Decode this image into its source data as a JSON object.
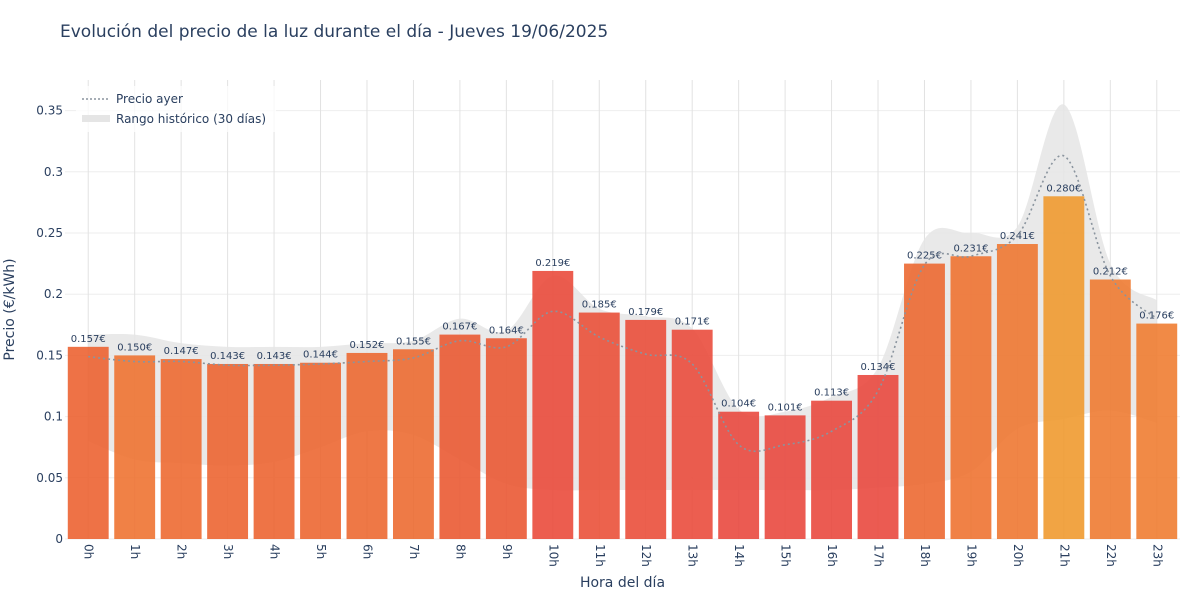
{
  "chart_data": {
    "type": "bar",
    "title": "Evolución del precio de la luz durante el día - Jueves 19/06/2025",
    "xlabel": "Hora del día",
    "ylabel": "Precio (€/kWh)",
    "ylim": [
      0,
      0.375
    ],
    "yticks": [
      0,
      0.05,
      0.1,
      0.15,
      0.2,
      0.25,
      0.3,
      0.35
    ],
    "ytick_labels": [
      "0",
      "0.05",
      "0.1",
      "0.15",
      "0.2",
      "0.25",
      "0.3",
      "0.35"
    ],
    "grid": true,
    "legend_position": "top-left",
    "categories": [
      "0h",
      "1h",
      "2h",
      "3h",
      "4h",
      "5h",
      "6h",
      "7h",
      "8h",
      "9h",
      "10h",
      "11h",
      "12h",
      "13h",
      "14h",
      "15h",
      "16h",
      "17h",
      "18h",
      "19h",
      "20h",
      "21h",
      "22h",
      "23h"
    ],
    "values": [
      0.157,
      0.15,
      0.147,
      0.143,
      0.143,
      0.144,
      0.152,
      0.155,
      0.167,
      0.164,
      0.219,
      0.185,
      0.179,
      0.171,
      0.104,
      0.101,
      0.113,
      0.134,
      0.225,
      0.231,
      0.241,
      0.28,
      0.212,
      0.176
    ],
    "value_labels": [
      "0.157€",
      "0.150€",
      "0.147€",
      "0.143€",
      "0.143€",
      "0.144€",
      "0.152€",
      "0.155€",
      "0.167€",
      "0.164€",
      "0.219€",
      "0.185€",
      "0.179€",
      "0.171€",
      "0.104€",
      "0.101€",
      "0.113€",
      "0.134€",
      "0.225€",
      "0.231€",
      "0.241€",
      "0.280€",
      "0.212€",
      "0.176€"
    ],
    "bar_colors": [
      "#ec5f2c",
      "#ee6f2c",
      "#ed662c",
      "#ec612c",
      "#ec612c",
      "#ec632c",
      "#ec652c",
      "#ec682c",
      "#e9552e",
      "#e9542f",
      "#e94737",
      "#e94c34",
      "#e94a36",
      "#e94838",
      "#e8443a",
      "#e8443a",
      "#e8443a",
      "#e8443a",
      "#ec652c",
      "#ee6f2c",
      "#ee742c",
      "#ef972a",
      "#ee782c",
      "#ef7a2c"
    ],
    "series": [
      {
        "name": "Precio ayer",
        "style": "dotted",
        "color": "#8a949e",
        "values": [
          0.149,
          0.145,
          0.145,
          0.142,
          0.142,
          0.143,
          0.145,
          0.148,
          0.162,
          0.157,
          0.186,
          0.165,
          0.151,
          0.143,
          0.077,
          0.077,
          0.088,
          0.121,
          0.224,
          0.231,
          0.248,
          0.313,
          0.215,
          0.18
        ]
      },
      {
        "name": "Rango histórico (30 días)",
        "type": "band",
        "color": "#e5e5e5",
        "lower": [
          0.08,
          0.065,
          0.062,
          0.06,
          0.063,
          0.075,
          0.088,
          0.085,
          0.065,
          0.045,
          0.04,
          0.04,
          0.04,
          0.04,
          0.04,
          0.04,
          0.04,
          0.042,
          0.045,
          0.055,
          0.09,
          0.098,
          0.105,
          0.095
        ],
        "upper": [
          0.167,
          0.167,
          0.16,
          0.157,
          0.157,
          0.157,
          0.16,
          0.162,
          0.18,
          0.17,
          0.215,
          0.188,
          0.182,
          0.172,
          0.106,
          0.104,
          0.116,
          0.14,
          0.245,
          0.25,
          0.255,
          0.355,
          0.225,
          0.195
        ]
      }
    ]
  }
}
